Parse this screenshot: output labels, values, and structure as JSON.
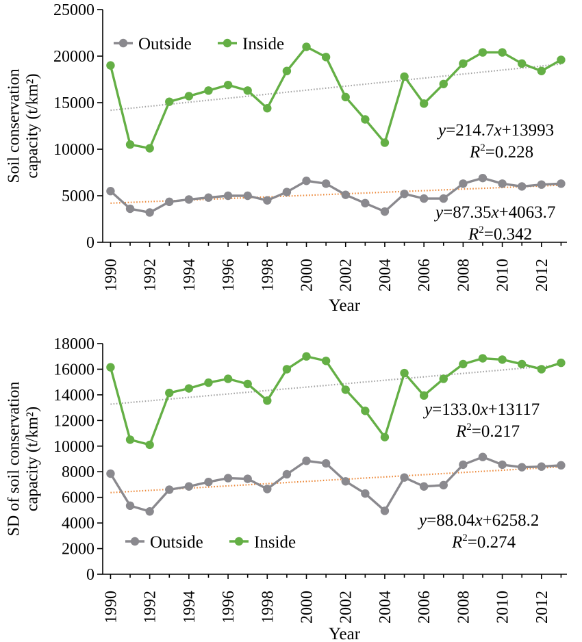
{
  "chart_data": [
    {
      "type": "line",
      "ylabel": [
        "Soil conservation",
        "capacity (t/km²)"
      ],
      "xlabel": "Year",
      "ylim": [
        0,
        25000
      ],
      "yticks": [
        "0",
        "5000",
        "10000",
        "15000",
        "20000",
        "25000"
      ],
      "xlim": [
        1989.6,
        2013.3
      ],
      "xticks": [
        "1990",
        "1992",
        "1994",
        "1996",
        "1998",
        "2000",
        "2002",
        "2004",
        "2006",
        "2008",
        "2010",
        "2012"
      ],
      "legend_placement": "top-left",
      "grid": false,
      "x": [
        1990,
        1991,
        1992,
        1993,
        1994,
        1995,
        1996,
        1997,
        1998,
        1999,
        2000,
        2001,
        2002,
        2003,
        2004,
        2005,
        2006,
        2007,
        2008,
        2009,
        2010,
        2011,
        2012,
        2013
      ],
      "series": [
        {
          "name": "Outside",
          "color": "#8a898e",
          "values": [
            5500,
            3600,
            3200,
            4350,
            4600,
            4800,
            5000,
            5000,
            4500,
            5400,
            6600,
            6300,
            5100,
            4200,
            3300,
            5200,
            4700,
            4700,
            6300,
            6900,
            6300,
            6000,
            6200,
            6300
          ]
        },
        {
          "name": "Inside",
          "color": "#64af45",
          "values": [
            19000,
            10500,
            10100,
            15100,
            15700,
            16300,
            16900,
            16300,
            14400,
            18400,
            21000,
            19900,
            15600,
            13200,
            10700,
            17800,
            14900,
            17000,
            19200,
            20400,
            20400,
            19200,
            18400,
            19600
          ]
        }
      ],
      "trendlines": [
        {
          "series": "Inside",
          "color": "#a5a5a5",
          "label_y": "y=214.7x+13993",
          "label_r": "R2=0.228",
          "label_y_parts": [
            "y",
            "=214.7",
            "x",
            "+13993"
          ],
          "label_r_parts": [
            "R",
            "2",
            "=0.228"
          ]
        },
        {
          "series": "Outside",
          "color": "#ec8a3c",
          "label_y": "y=87.35x+4063.7",
          "label_r": "R2=0.342",
          "label_y_parts": [
            "y",
            "=87.35",
            "x",
            "+4063.7"
          ],
          "label_r_parts": [
            "R",
            "2",
            "=0.342"
          ]
        }
      ]
    },
    {
      "type": "line",
      "ylabel": [
        "SD of soil conservation",
        "capacity (t/km²)"
      ],
      "xlabel": "Year",
      "ylim": [
        0,
        18000
      ],
      "yticks": [
        "0",
        "2000",
        "4000",
        "6000",
        "8000",
        "10000",
        "12000",
        "14000",
        "16000",
        "18000"
      ],
      "xlim": [
        1989.6,
        2013.3
      ],
      "xticks": [
        "1990",
        "1992",
        "1994",
        "1996",
        "1998",
        "2000",
        "2002",
        "2004",
        "2006",
        "2008",
        "2010",
        "2012"
      ],
      "legend_placement": "bottom-left",
      "grid": false,
      "x": [
        1990,
        1991,
        1992,
        1993,
        1994,
        1995,
        1996,
        1997,
        1998,
        1999,
        2000,
        2001,
        2002,
        2003,
        2004,
        2005,
        2006,
        2007,
        2008,
        2009,
        2010,
        2011,
        2012,
        2013
      ],
      "series": [
        {
          "name": "Outside",
          "color": "#8a898e",
          "values": [
            7850,
            5350,
            4900,
            6600,
            6850,
            7200,
            7500,
            7450,
            6650,
            7800,
            8850,
            8650,
            7250,
            6300,
            4950,
            7550,
            6850,
            6950,
            8550,
            9150,
            8550,
            8350,
            8400,
            8500
          ]
        },
        {
          "name": "Inside",
          "color": "#64af45",
          "values": [
            16150,
            10500,
            10100,
            14150,
            14500,
            14950,
            15250,
            14850,
            13550,
            16000,
            17000,
            16650,
            14400,
            12750,
            10700,
            15700,
            13950,
            15250,
            16400,
            16850,
            16750,
            16400,
            16000,
            16500
          ]
        }
      ],
      "trendlines": [
        {
          "series": "Inside",
          "color": "#a5a5a5",
          "label_y": "y=133.0x+13117",
          "label_r": "R2=0.217",
          "label_y_parts": [
            "y",
            "=133.0",
            "x",
            "+13117"
          ],
          "label_r_parts": [
            "R",
            "2",
            "=0.217"
          ]
        },
        {
          "series": "Outside",
          "color": "#ec8a3c",
          "label_y": "y=88.04x+6258.2",
          "label_r": "R2=0.274",
          "label_y_parts": [
            "y",
            "=88.04",
            "x",
            "+6258.2"
          ],
          "label_r_parts": [
            "R",
            "2",
            "=0.274"
          ]
        }
      ]
    }
  ]
}
